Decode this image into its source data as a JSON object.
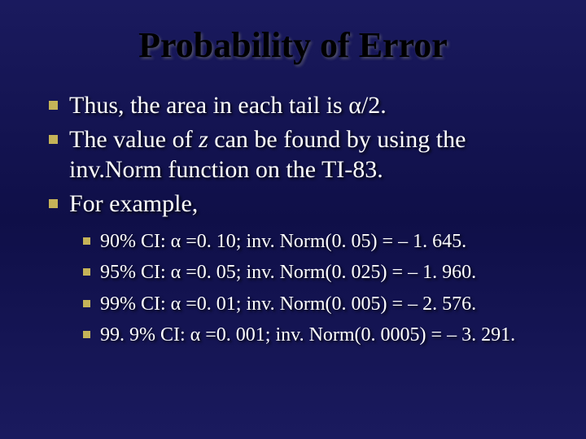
{
  "slide": {
    "title": "Probability of Error",
    "background_gradient": [
      "#1a1a5e",
      "#0f0f48",
      "#1a1a5e"
    ],
    "title_color": "#000000",
    "title_fontsize": 44,
    "text_color": "#ffffff",
    "bullet_color": "#c5b358",
    "main_fontsize": 30,
    "sub_fontsize": 24,
    "font_family": "Times New Roman",
    "main_items": [
      {
        "pre": "Thus, the area in each tail is ",
        "alpha": "α",
        "post": "/2."
      },
      {
        "pre": "The value of ",
        "italic": "z",
        "post2": " can be found by using the inv.Norm function on the TI-83."
      },
      {
        "pre": "For example,"
      }
    ],
    "sub_items": [
      {
        "ci": "90% CI: ",
        "alpha": "α",
        "eq": " =0. 10; inv. Norm(0. 05) = – 1. 645."
      },
      {
        "ci": "95% CI: ",
        "alpha": "α",
        "eq": " =0. 05; inv. Norm(0. 025) = – 1. 960."
      },
      {
        "ci": "99% CI: ",
        "alpha": "α",
        "eq": " =0. 01; inv. Norm(0. 005) = – 2. 576."
      },
      {
        "ci": "99. 9% CI: ",
        "alpha": "α",
        "eq": " =0. 001; inv. Norm(0. 0005) = – 3. 291."
      }
    ]
  }
}
